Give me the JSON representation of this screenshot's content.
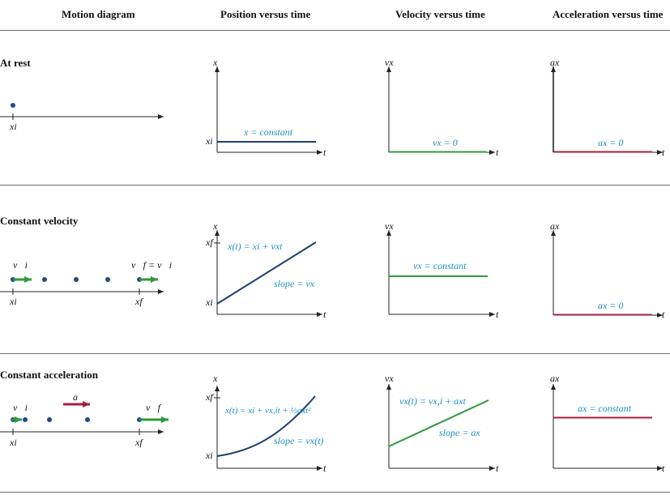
{
  "headers": {
    "motion": "Motion diagram",
    "position": "Position versus time",
    "velocity": "Velocity versus time",
    "acceleration": "Acceleration versus time"
  },
  "rows": {
    "rest": {
      "title": "At rest",
      "motion_label": "xi",
      "pos_axis_y": "x",
      "pos_axis_x": "t",
      "pos_tick": "xi",
      "pos_eq": "x = constant",
      "vel_axis_y": "vx",
      "vel_axis_x": "t",
      "vel_eq": "vx = 0",
      "acc_axis_y": "ax",
      "acc_axis_x": "t",
      "acc_eq": "ax = 0"
    },
    "constv": {
      "title": "Constant velocity",
      "vi_label": "v⃗i",
      "vf_label": "v⃗f = v⃗i",
      "motion_xi": "xi",
      "motion_xf": "xf",
      "pos_axis_y": "x",
      "pos_axis_x": "t",
      "pos_tick_f": "xf",
      "pos_tick_i": "xi",
      "pos_eq": "x(t) =  xi + vxt",
      "pos_slope": "slope = vx",
      "vel_axis_y": "vx",
      "vel_axis_x": "t",
      "vel_eq": "vx =  constant",
      "acc_axis_y": "ax",
      "acc_axis_x": "t",
      "acc_eq": "ax = 0"
    },
    "consta": {
      "title": "Constant acceleration",
      "vi_label": "v⃗i",
      "a_label": "a⃗",
      "vf_label": "v⃗f",
      "motion_xi": "xi",
      "motion_xf": "xf",
      "pos_axis_y": "x",
      "pos_axis_x": "t",
      "pos_tick_f": "xf",
      "pos_tick_i": "xi",
      "pos_eq": "x(t) =  xi + vx,it + ½axt²",
      "pos_slope": "slope = vx(t)",
      "vel_axis_y": "vx",
      "vel_axis_x": "t",
      "vel_eq": "vx(t) =  vx,i + axt",
      "vel_slope": "slope = ax",
      "acc_axis_y": "ax",
      "acc_axis_x": "t",
      "acc_eq": "ax =  constant"
    }
  },
  "colors": {
    "navy": "#1c3f73",
    "dot": "#1f4a8a",
    "green": "#2e9a3a",
    "red": "#a51d3c",
    "blue_text": "#1a8fc1",
    "axis": "#222222"
  }
}
